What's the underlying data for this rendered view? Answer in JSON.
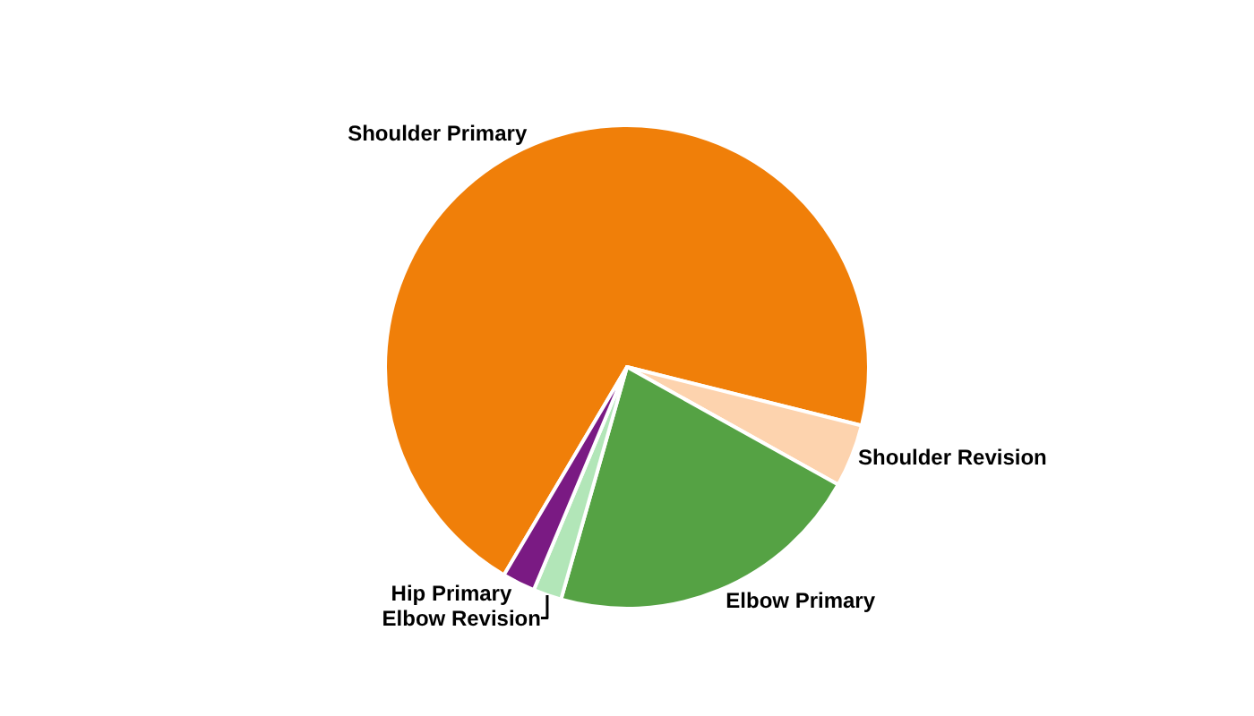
{
  "chart_data": {
    "type": "pie",
    "categories": [
      "Shoulder Primary",
      "Shoulder Revision",
      "Elbow Primary",
      "Elbow Revision",
      "Hip Primary"
    ],
    "values": [
      70.4,
      4.2,
      21.3,
      1.9,
      2.2
    ],
    "colors": [
      "#f07f09",
      "#fdd3ae",
      "#55a244",
      "#b2e6b8",
      "#7a1a83"
    ],
    "legend": false
  }
}
